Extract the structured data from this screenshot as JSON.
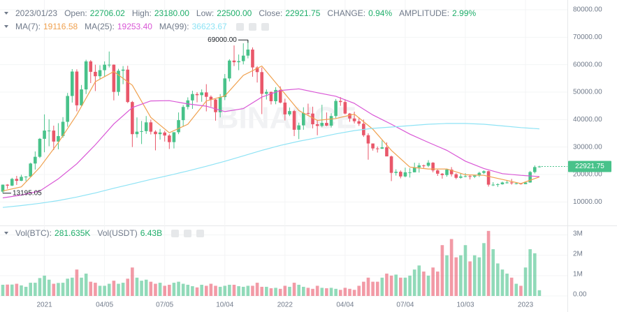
{
  "chart_data": {
    "type": "candlestick",
    "up_color": "#48c28a",
    "down_color": "#e9576a",
    "header": {
      "date": "2023/01/23",
      "fields": [
        {
          "label": "Open:",
          "value": "22706.02"
        },
        {
          "label": "High:",
          "value": "23180.00"
        },
        {
          "label": "Low:",
          "value": "22500.00"
        },
        {
          "label": "Close:",
          "value": "22921.75"
        },
        {
          "label": "CHANGE:",
          "value": "0.94%"
        },
        {
          "label": "AMPLITUDE:",
          "value": "2.99%"
        }
      ],
      "value_color": "#1fae6a"
    },
    "watermark": "BINANCE",
    "high_label": "69000.00",
    "low_label": "13195.05",
    "last_price_label": "22921.75",
    "categories": [
      null,
      null,
      null,
      null,
      null,
      null,
      null,
      null,
      null,
      "2021",
      null,
      null,
      null,
      null,
      null,
      null,
      null,
      null,
      null,
      null,
      null,
      null,
      "04/05",
      null,
      null,
      null,
      null,
      null,
      null,
      null,
      null,
      null,
      null,
      null,
      null,
      "07/05",
      null,
      null,
      null,
      null,
      null,
      null,
      null,
      null,
      null,
      null,
      null,
      null,
      "10/04",
      null,
      null,
      null,
      null,
      null,
      null,
      null,
      null,
      null,
      null,
      null,
      null,
      "2022",
      null,
      null,
      null,
      null,
      null,
      null,
      null,
      null,
      null,
      null,
      null,
      null,
      "04/04",
      null,
      null,
      null,
      null,
      null,
      null,
      null,
      null,
      null,
      null,
      null,
      null,
      "07/04",
      null,
      null,
      null,
      null,
      null,
      null,
      null,
      null,
      null,
      null,
      null,
      null,
      "10/03",
      null,
      null,
      null,
      null,
      null,
      null,
      null,
      null,
      null,
      null,
      null,
      null,
      "2023",
      null,
      null,
      null
    ],
    "open": [
      13750,
      16300,
      15950,
      18400,
      17700,
      19150,
      19250,
      24000,
      26450,
      33000,
      36000,
      36000,
      32000,
      34000,
      39200,
      48600,
      57500,
      45200,
      51000,
      61200,
      57400,
      55800,
      58000,
      60000,
      60000,
      50100,
      57800,
      58200,
      46400,
      34700,
      35600,
      35800,
      39000,
      35600,
      34700,
      35300,
      34200,
      31800,
      35400,
      39800,
      44600,
      47000,
      49300,
      48900,
      49900,
      48300,
      47300,
      42700,
      48200,
      55000,
      61500,
      60900,
      61300,
      63300,
      65500,
      59000,
      57300,
      49400,
      50100,
      46700,
      50800,
      46200,
      41900,
      43100,
      36300,
      37900,
      42400,
      42200,
      38300,
      37700,
      38800,
      37800,
      41300,
      46800,
      46400,
      42200,
      40400,
      39400,
      38500,
      34300,
      31300,
      29500,
      29400,
      29900,
      26600,
      20600,
      21000,
      19300,
      20800,
      20800,
      22600,
      23300,
      23200,
      24300,
      21500,
      20300,
      19800,
      21800,
      20100,
      18800,
      19300,
      19400,
      19200,
      19600,
      20600,
      21200,
      16300,
      16300,
      16450,
      17100,
      17100,
      16800,
      16800,
      16500,
      17100,
      20900,
      22706.02
    ],
    "high": [
      16350,
      16500,
      18800,
      19500,
      19900,
      19400,
      24300,
      28400,
      33300,
      41900,
      40100,
      37800,
      38700,
      40900,
      49700,
      58400,
      58300,
      52600,
      61800,
      61700,
      60000,
      59800,
      61200,
      64800,
      60100,
      58500,
      59500,
      59600,
      46800,
      40800,
      39500,
      41300,
      40000,
      36100,
      36600,
      35900,
      34700,
      35400,
      42600,
      45300,
      48100,
      50500,
      50000,
      51000,
      52900,
      48800,
      47500,
      49300,
      56600,
      62000,
      67000,
      63700,
      67800,
      69000,
      66300,
      59500,
      59000,
      51000,
      50200,
      51800,
      52100,
      47600,
      44400,
      43500,
      38900,
      44500,
      45800,
      44700,
      39900,
      45400,
      42600,
      42300,
      47500,
      48200,
      47400,
      42400,
      42900,
      40800,
      40000,
      35000,
      31300,
      30200,
      32400,
      31700,
      26900,
      21900,
      21500,
      22500,
      22300,
      24300,
      24200,
      23600,
      25200,
      24500,
      21800,
      20500,
      22000,
      22700,
      20500,
      20400,
      20500,
      19900,
      19700,
      21000,
      21500,
      21400,
      17200,
      16800,
      17400,
      18000,
      18400,
      17000,
      16900,
      17400,
      21300,
      23300,
      23180
    ],
    "low": [
      13195.05,
      14800,
      15800,
      16200,
      17600,
      17600,
      19000,
      21800,
      26000,
      28100,
      30300,
      28900,
      29200,
      33400,
      37400,
      46200,
      43000,
      44900,
      49300,
      53300,
      50400,
      54800,
      55500,
      59000,
      47000,
      48700,
      52900,
      46000,
      30000,
      33400,
      31100,
      34800,
      34600,
      28800,
      32700,
      32000,
      29300,
      29500,
      34700,
      37400,
      43700,
      43900,
      46300,
      46500,
      43000,
      44700,
      39600,
      40800,
      47100,
      53900,
      59500,
      58000,
      60100,
      62300,
      55600,
      53500,
      42000,
      47300,
      45500,
      45600,
      45900,
      39700,
      41300,
      34000,
      32900,
      36300,
      41700,
      36800,
      34300,
      37200,
      37600,
      37100,
      40500,
      45000,
      41900,
      39200,
      38600,
      37700,
      33700,
      25400,
      28700,
      28000,
      29300,
      26600,
      17600,
      19600,
      18600,
      19000,
      18900,
      20800,
      20700,
      22400,
      22700,
      20800,
      19500,
      18500,
      19200,
      19300,
      18300,
      18500,
      19000,
      18200,
      18700,
      19100,
      20200,
      15600,
      15800,
      15500,
      16300,
      16700,
      16300,
      16400,
      16300,
      16500,
      17000,
      20400,
      22500
    ],
    "close": [
      16300,
      15950,
      18400,
      17700,
      19150,
      19250,
      24000,
      26450,
      33000,
      36000,
      36000,
      32000,
      34000,
      39200,
      48600,
      57500,
      45200,
      51000,
      61200,
      57400,
      55800,
      58000,
      60000,
      60000,
      50100,
      57800,
      58200,
      46400,
      34700,
      35600,
      35800,
      39000,
      35600,
      34700,
      35300,
      34200,
      31800,
      35400,
      39800,
      44600,
      47000,
      49300,
      48900,
      49900,
      48300,
      47300,
      42700,
      48200,
      55000,
      61500,
      60900,
      61300,
      63300,
      65500,
      59000,
      57300,
      49400,
      50100,
      46700,
      50800,
      46200,
      41900,
      43100,
      36300,
      37900,
      42400,
      42200,
      38300,
      37700,
      38800,
      37800,
      41300,
      46800,
      46400,
      42200,
      40400,
      39400,
      38500,
      34300,
      31300,
      29500,
      29400,
      29900,
      26600,
      20600,
      21000,
      19300,
      20800,
      20800,
      22600,
      23300,
      23200,
      24300,
      21500,
      20300,
      19800,
      21800,
      20100,
      18800,
      19300,
      19400,
      19200,
      19600,
      20600,
      21200,
      16300,
      16300,
      16450,
      17100,
      17100,
      16800,
      16800,
      16500,
      17100,
      20900,
      22706.02,
      22921.75
    ],
    "ylim": [
      1700,
      83560
    ],
    "yticks": [
      {
        "value": 10000,
        "label": "10000.00"
      },
      {
        "value": 20000,
        "label": "20000.00"
      },
      {
        "value": 30000,
        "label": "30000.00"
      },
      {
        "value": 40000,
        "label": "40000.00"
      },
      {
        "value": 50000,
        "label": "50000.00"
      },
      {
        "value": 60000,
        "label": "60000.00"
      },
      {
        "value": 70000,
        "label": "70000.00"
      },
      {
        "value": 80000,
        "label": "80000.00"
      }
    ],
    "grid": true,
    "series": [
      {
        "name": "MA(7):",
        "last": "19116.58",
        "color": "#f0a14f",
        "x": [
          0,
          4,
          8,
          12,
          16,
          20,
          24,
          28,
          32,
          36,
          40,
          44,
          48,
          52,
          56,
          60,
          64,
          68,
          72,
          76,
          80,
          84,
          88,
          92,
          96,
          100,
          104,
          108,
          112,
          116
        ],
        "values": [
          14000,
          15500,
          22600,
          31600,
          41800,
          53800,
          57500,
          52500,
          40800,
          35200,
          38300,
          46800,
          48600,
          56100,
          59500,
          51400,
          43300,
          39700,
          40400,
          42000,
          36500,
          28800,
          22700,
          22000,
          22000,
          19900,
          19700,
          18200,
          16700,
          19116.58
        ]
      },
      {
        "name": "MA(25):",
        "last": "19253.40",
        "color": "#d957d6",
        "x": [
          0,
          4,
          8,
          12,
          16,
          20,
          24,
          28,
          32,
          36,
          40,
          44,
          48,
          52,
          56,
          60,
          64,
          68,
          72,
          76,
          80,
          84,
          88,
          92,
          96,
          100,
          104,
          108,
          112,
          116
        ],
        "values": [
          11500,
          12500,
          14000,
          18400,
          23900,
          30800,
          38400,
          44400,
          46800,
          46900,
          45700,
          44900,
          42900,
          44000,
          48200,
          50600,
          51200,
          49800,
          48500,
          45900,
          41700,
          38300,
          34700,
          31700,
          28800,
          24850,
          22200,
          20300,
          19700,
          19253.4
        ]
      },
      {
        "name": "MA(99):",
        "last": "36623.67",
        "color": "#8ee3f5",
        "x": [
          0,
          4,
          8,
          12,
          16,
          20,
          24,
          28,
          32,
          36,
          40,
          44,
          48,
          52,
          56,
          60,
          64,
          68,
          72,
          76,
          80,
          84,
          88,
          92,
          96,
          100,
          104,
          108,
          112,
          116
        ],
        "values": [
          8000,
          8700,
          9500,
          10500,
          11800,
          13300,
          15000,
          16600,
          18200,
          19700,
          21300,
          23000,
          24800,
          26800,
          28800,
          30600,
          32100,
          33400,
          34800,
          36000,
          36800,
          37300,
          37800,
          38300,
          38600,
          38600,
          38300,
          37700,
          37100,
          36623.67
        ]
      }
    ],
    "volume": {
      "labels": [
        {
          "label": "Vol(BTC):",
          "value": "281.635K"
        },
        {
          "label": "Vol(USDT)",
          "value": "6.43B"
        }
      ],
      "ylim": [
        0,
        3400000
      ],
      "yticks": [
        {
          "value": 0,
          "label": "0.00"
        },
        {
          "value": 1000000,
          "label": "1M"
        },
        {
          "value": 2000000,
          "label": "2M"
        },
        {
          "value": 3000000,
          "label": "3M"
        }
      ],
      "values": [
        550000,
        560000,
        560000,
        600000,
        520000,
        450000,
        650000,
        650000,
        880000,
        1000000,
        800000,
        600000,
        640000,
        650000,
        850000,
        900000,
        1300000,
        900000,
        1100000,
        700000,
        650000,
        500000,
        500000,
        600000,
        750000,
        600000,
        650000,
        850000,
        1400000,
        900000,
        750000,
        800000,
        700000,
        600000,
        650000,
        500000,
        550000,
        650000,
        700000,
        600000,
        550000,
        480000,
        420000,
        550000,
        500000,
        600000,
        500000,
        450000,
        500000,
        550000,
        550000,
        480000,
        450000,
        500000,
        500000,
        650000,
        450000,
        450000,
        380000,
        400000,
        350000,
        500000,
        450000,
        650000,
        550000,
        450000,
        400000,
        350000,
        500000,
        400000,
        380000,
        400000,
        350000,
        300000,
        400000,
        350000,
        300000,
        500000,
        700000,
        900000,
        700000,
        700000,
        900000,
        1100000,
        1000000,
        1050000,
        900000,
        900000,
        1000000,
        1300000,
        1500000,
        1200000,
        1000000,
        1400000,
        1200000,
        2500000,
        2000000,
        2800000,
        1900000,
        2000000,
        2500000,
        1700000,
        2000000,
        1900000,
        2600000,
        3200000,
        2300000,
        1600000,
        1300000,
        1100000,
        900000,
        600000,
        500000,
        1400000,
        2300000,
        2100000,
        281635
      ]
    }
  }
}
